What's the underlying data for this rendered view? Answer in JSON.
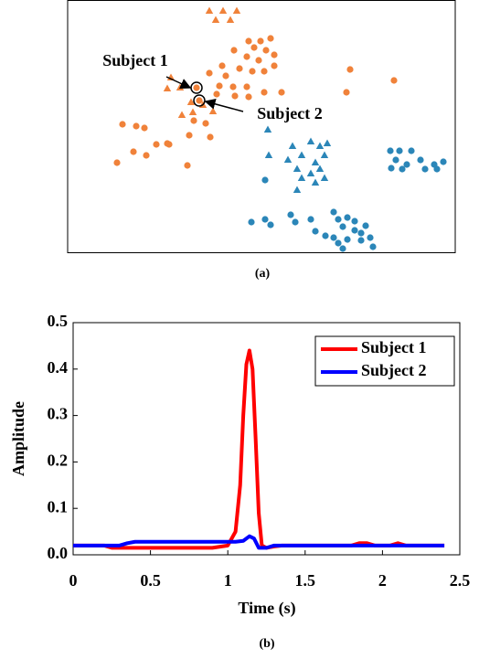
{
  "chart_data": [
    {
      "type": "scatter",
      "caption": "(a)",
      "xlim": [
        0,
        424
      ],
      "ylim": [
        276,
        0
      ],
      "annotations": [
        "Subject 1",
        "Subject 2"
      ],
      "series": [
        {
          "marker": "triangle",
          "color": "#f0823a",
          "x": [
            155,
            170,
            185,
            162,
            178,
            113,
            109,
            123,
            135,
            148,
            159,
            137,
            125
          ],
          "values": [
            12,
            12,
            12,
            22,
            22,
            85,
            97,
            96,
            112,
            115,
            122,
            123,
            126
          ]
        },
        {
          "marker": "circle",
          "color": "#f0823a",
          "x": [
            198,
            211,
            222,
            204,
            217,
            226,
            182,
            196,
            209,
            169,
            188,
            202,
            226,
            155,
            173,
            215,
            166,
            181,
            196,
            163,
            183,
            215,
            198,
            234,
            309,
            357,
            305,
            151,
            138,
            133,
            131,
            97,
            109,
            75,
            60,
            84,
            72,
            86,
            54,
            111,
            156,
            141,
            144
          ],
          "values": [
            45,
            45,
            42,
            52,
            55,
            60,
            55,
            62,
            66,
            72,
            75,
            78,
            72,
            80,
            83,
            78,
            94,
            95,
            95,
            103,
            105,
            101,
            106,
            101,
            76,
            88,
            101,
            135,
            132,
            148,
            181,
            158,
            157,
            138,
            136,
            140,
            166,
            170,
            178,
            158,
            150,
            96,
            110
          ]
        },
        {
          "marker": "triangle",
          "color": "#2b86b8",
          "x": [
            219,
            220,
            266,
            276,
            246,
            284,
            256,
            271,
            281,
            241,
            251,
            266,
            281,
            276,
            256,
            271,
            251
          ],
          "values": [
            142,
            170,
            155,
            160,
            160,
            157,
            170,
            178,
            170,
            175,
            185,
            190,
            195,
            185,
            195,
            200,
            208
          ]
        },
        {
          "marker": "circle",
          "color": "#2b86b8",
          "x": [
            216,
            353,
            363,
            376,
            359,
            371,
            386,
            401,
            411,
            354,
            366,
            391,
            404,
            201,
            216,
            222,
            244,
            249,
            266,
            271,
            282,
            291,
            296,
            301,
            306,
            314,
            326,
            291,
            296,
            306,
            321,
            331,
            334,
            301,
            314,
            321
          ],
          "values": [
            197,
            165,
            165,
            165,
            175,
            180,
            175,
            180,
            177,
            184,
            185,
            185,
            185,
            243,
            240,
            246,
            235,
            243,
            240,
            253,
            258,
            232,
            240,
            248,
            238,
            242,
            247,
            260,
            266,
            262,
            263,
            260,
            270,
            272,
            252,
            255
          ]
        }
      ]
    },
    {
      "type": "line",
      "caption": "(b)",
      "x_label": "Time (s)",
      "y_label": "Amplitude",
      "xlim": [
        0,
        2.5
      ],
      "ylim": [
        0,
        0.5
      ],
      "xticks": [
        0,
        0.5,
        1,
        1.5,
        2,
        2.5
      ],
      "yticks": [
        {
          "value": 0,
          "label": "0.0"
        },
        0.1,
        0.2,
        0.3,
        0.4,
        0.5
      ],
      "legend": "upper right",
      "series": [
        {
          "name": "Subject 1",
          "color": "#ff0000",
          "x": [
            0,
            0.2,
            0.25,
            0.9,
            1.0,
            1.05,
            1.08,
            1.1,
            1.12,
            1.14,
            1.16,
            1.18,
            1.2,
            1.22,
            1.25,
            1.3,
            1.35,
            1.8,
            1.85,
            1.9,
            1.95,
            2.05,
            2.1,
            2.15,
            2.4
          ],
          "values": [
            0.02,
            0.02,
            0.015,
            0.015,
            0.02,
            0.05,
            0.15,
            0.3,
            0.41,
            0.44,
            0.4,
            0.25,
            0.09,
            0.02,
            0.015,
            0.018,
            0.02,
            0.02,
            0.025,
            0.025,
            0.02,
            0.02,
            0.025,
            0.02,
            0.02
          ]
        },
        {
          "name": "Subject 2",
          "color": "#0000ff",
          "x": [
            0,
            0.3,
            0.35,
            0.4,
            1.05,
            1.1,
            1.14,
            1.17,
            1.2,
            1.25,
            1.3,
            2.4
          ],
          "values": [
            0.02,
            0.02,
            0.025,
            0.028,
            0.028,
            0.03,
            0.04,
            0.035,
            0.015,
            0.015,
            0.02,
            0.02
          ]
        }
      ]
    }
  ]
}
